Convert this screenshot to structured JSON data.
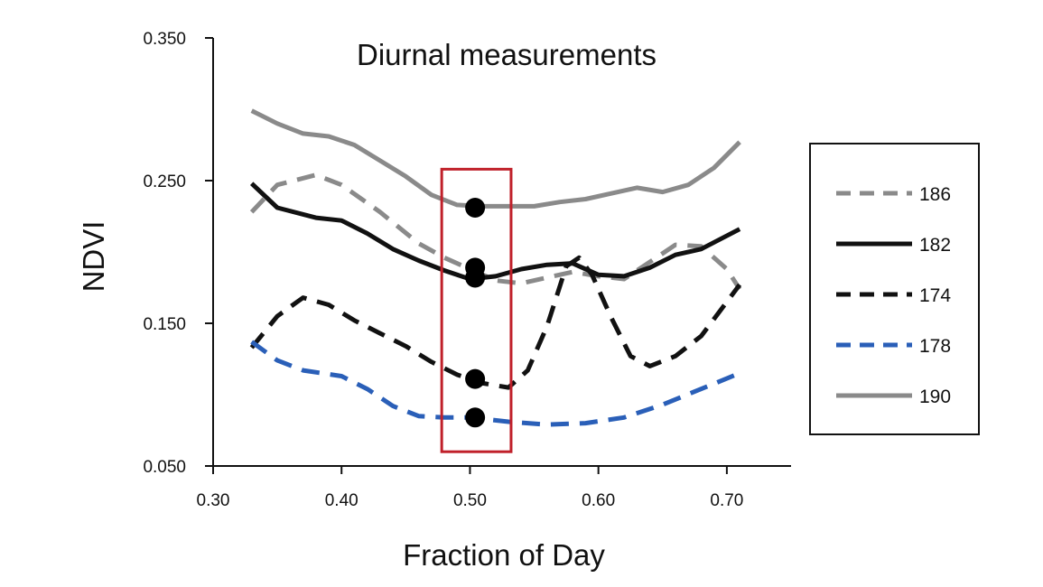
{
  "chart_data": {
    "type": "line",
    "title": "Diurnal measurements",
    "xlabel": "Fraction of Day",
    "ylabel": "NDVI",
    "xlim": [
      0.3,
      0.75
    ],
    "ylim": [
      0.05,
      0.35
    ],
    "x_ticks": [
      0.3,
      0.4,
      0.5,
      0.6,
      0.7
    ],
    "x_tick_labels": [
      "0.30",
      "0.40",
      "0.50",
      "0.60",
      "0.70"
    ],
    "y_ticks": [
      0.05,
      0.15,
      0.25,
      0.35
    ],
    "y_tick_labels": [
      "0.050",
      "0.150",
      "0.250",
      "0.350"
    ],
    "grid": false,
    "legend_position": "right",
    "highlight_box": {
      "x": [
        0.478,
        0.532
      ],
      "y": [
        0.06,
        0.258
      ],
      "color": "#c0202a"
    },
    "highlight_points": [
      {
        "x": 0.504,
        "y": 0.231
      },
      {
        "x": 0.504,
        "y": 0.189
      },
      {
        "x": 0.504,
        "y": 0.182
      },
      {
        "x": 0.504,
        "y": 0.111
      },
      {
        "x": 0.504,
        "y": 0.084
      }
    ],
    "series": [
      {
        "name": "186",
        "color": "#8a8a8a",
        "dash": "dashed",
        "points": [
          [
            0.33,
            0.228
          ],
          [
            0.35,
            0.247
          ],
          [
            0.38,
            0.254
          ],
          [
            0.4,
            0.247
          ],
          [
            0.43,
            0.228
          ],
          [
            0.46,
            0.206
          ],
          [
            0.48,
            0.196
          ],
          [
            0.5,
            0.188
          ],
          [
            0.52,
            0.18
          ],
          [
            0.54,
            0.178
          ],
          [
            0.56,
            0.182
          ],
          [
            0.58,
            0.186
          ],
          [
            0.6,
            0.183
          ],
          [
            0.62,
            0.181
          ],
          [
            0.64,
            0.193
          ],
          [
            0.66,
            0.205
          ],
          [
            0.68,
            0.204
          ],
          [
            0.7,
            0.188
          ],
          [
            0.71,
            0.174
          ]
        ]
      },
      {
        "name": "182",
        "color": "#111111",
        "dash": "solid",
        "points": [
          [
            0.33,
            0.248
          ],
          [
            0.35,
            0.231
          ],
          [
            0.38,
            0.224
          ],
          [
            0.4,
            0.222
          ],
          [
            0.42,
            0.213
          ],
          [
            0.44,
            0.202
          ],
          [
            0.46,
            0.194
          ],
          [
            0.48,
            0.187
          ],
          [
            0.5,
            0.181
          ],
          [
            0.52,
            0.183
          ],
          [
            0.54,
            0.188
          ],
          [
            0.56,
            0.191
          ],
          [
            0.58,
            0.192
          ],
          [
            0.6,
            0.184
          ],
          [
            0.62,
            0.183
          ],
          [
            0.64,
            0.189
          ],
          [
            0.66,
            0.198
          ],
          [
            0.68,
            0.202
          ],
          [
            0.71,
            0.216
          ]
        ]
      },
      {
        "name": "174",
        "color": "#111111",
        "dash": "dashed",
        "points": [
          [
            0.33,
            0.133
          ],
          [
            0.35,
            0.155
          ],
          [
            0.37,
            0.168
          ],
          [
            0.39,
            0.163
          ],
          [
            0.41,
            0.152
          ],
          [
            0.43,
            0.143
          ],
          [
            0.45,
            0.134
          ],
          [
            0.47,
            0.123
          ],
          [
            0.49,
            0.114
          ],
          [
            0.51,
            0.108
          ],
          [
            0.53,
            0.105
          ],
          [
            0.545,
            0.117
          ],
          [
            0.56,
            0.148
          ],
          [
            0.575,
            0.19
          ],
          [
            0.585,
            0.196
          ],
          [
            0.595,
            0.184
          ],
          [
            0.61,
            0.154
          ],
          [
            0.625,
            0.127
          ],
          [
            0.64,
            0.12
          ],
          [
            0.66,
            0.127
          ],
          [
            0.68,
            0.141
          ],
          [
            0.71,
            0.177
          ]
        ]
      },
      {
        "name": "178",
        "color": "#2a5fb8",
        "dash": "dashed",
        "points": [
          [
            0.33,
            0.137
          ],
          [
            0.35,
            0.124
          ],
          [
            0.37,
            0.117
          ],
          [
            0.4,
            0.113
          ],
          [
            0.42,
            0.104
          ],
          [
            0.44,
            0.092
          ],
          [
            0.46,
            0.085
          ],
          [
            0.48,
            0.084
          ],
          [
            0.5,
            0.084
          ],
          [
            0.53,
            0.081
          ],
          [
            0.56,
            0.079
          ],
          [
            0.59,
            0.08
          ],
          [
            0.62,
            0.084
          ],
          [
            0.65,
            0.093
          ],
          [
            0.68,
            0.104
          ],
          [
            0.71,
            0.115
          ]
        ]
      },
      {
        "name": "190",
        "color": "#8a8a8a",
        "dash": "solid",
        "points": [
          [
            0.33,
            0.299
          ],
          [
            0.35,
            0.29
          ],
          [
            0.37,
            0.283
          ],
          [
            0.39,
            0.281
          ],
          [
            0.41,
            0.275
          ],
          [
            0.43,
            0.264
          ],
          [
            0.45,
            0.253
          ],
          [
            0.47,
            0.24
          ],
          [
            0.49,
            0.233
          ],
          [
            0.51,
            0.232
          ],
          [
            0.53,
            0.232
          ],
          [
            0.55,
            0.232
          ],
          [
            0.57,
            0.235
          ],
          [
            0.59,
            0.237
          ],
          [
            0.61,
            0.241
          ],
          [
            0.63,
            0.245
          ],
          [
            0.65,
            0.242
          ],
          [
            0.67,
            0.247
          ],
          [
            0.69,
            0.259
          ],
          [
            0.71,
            0.277
          ]
        ]
      }
    ]
  }
}
